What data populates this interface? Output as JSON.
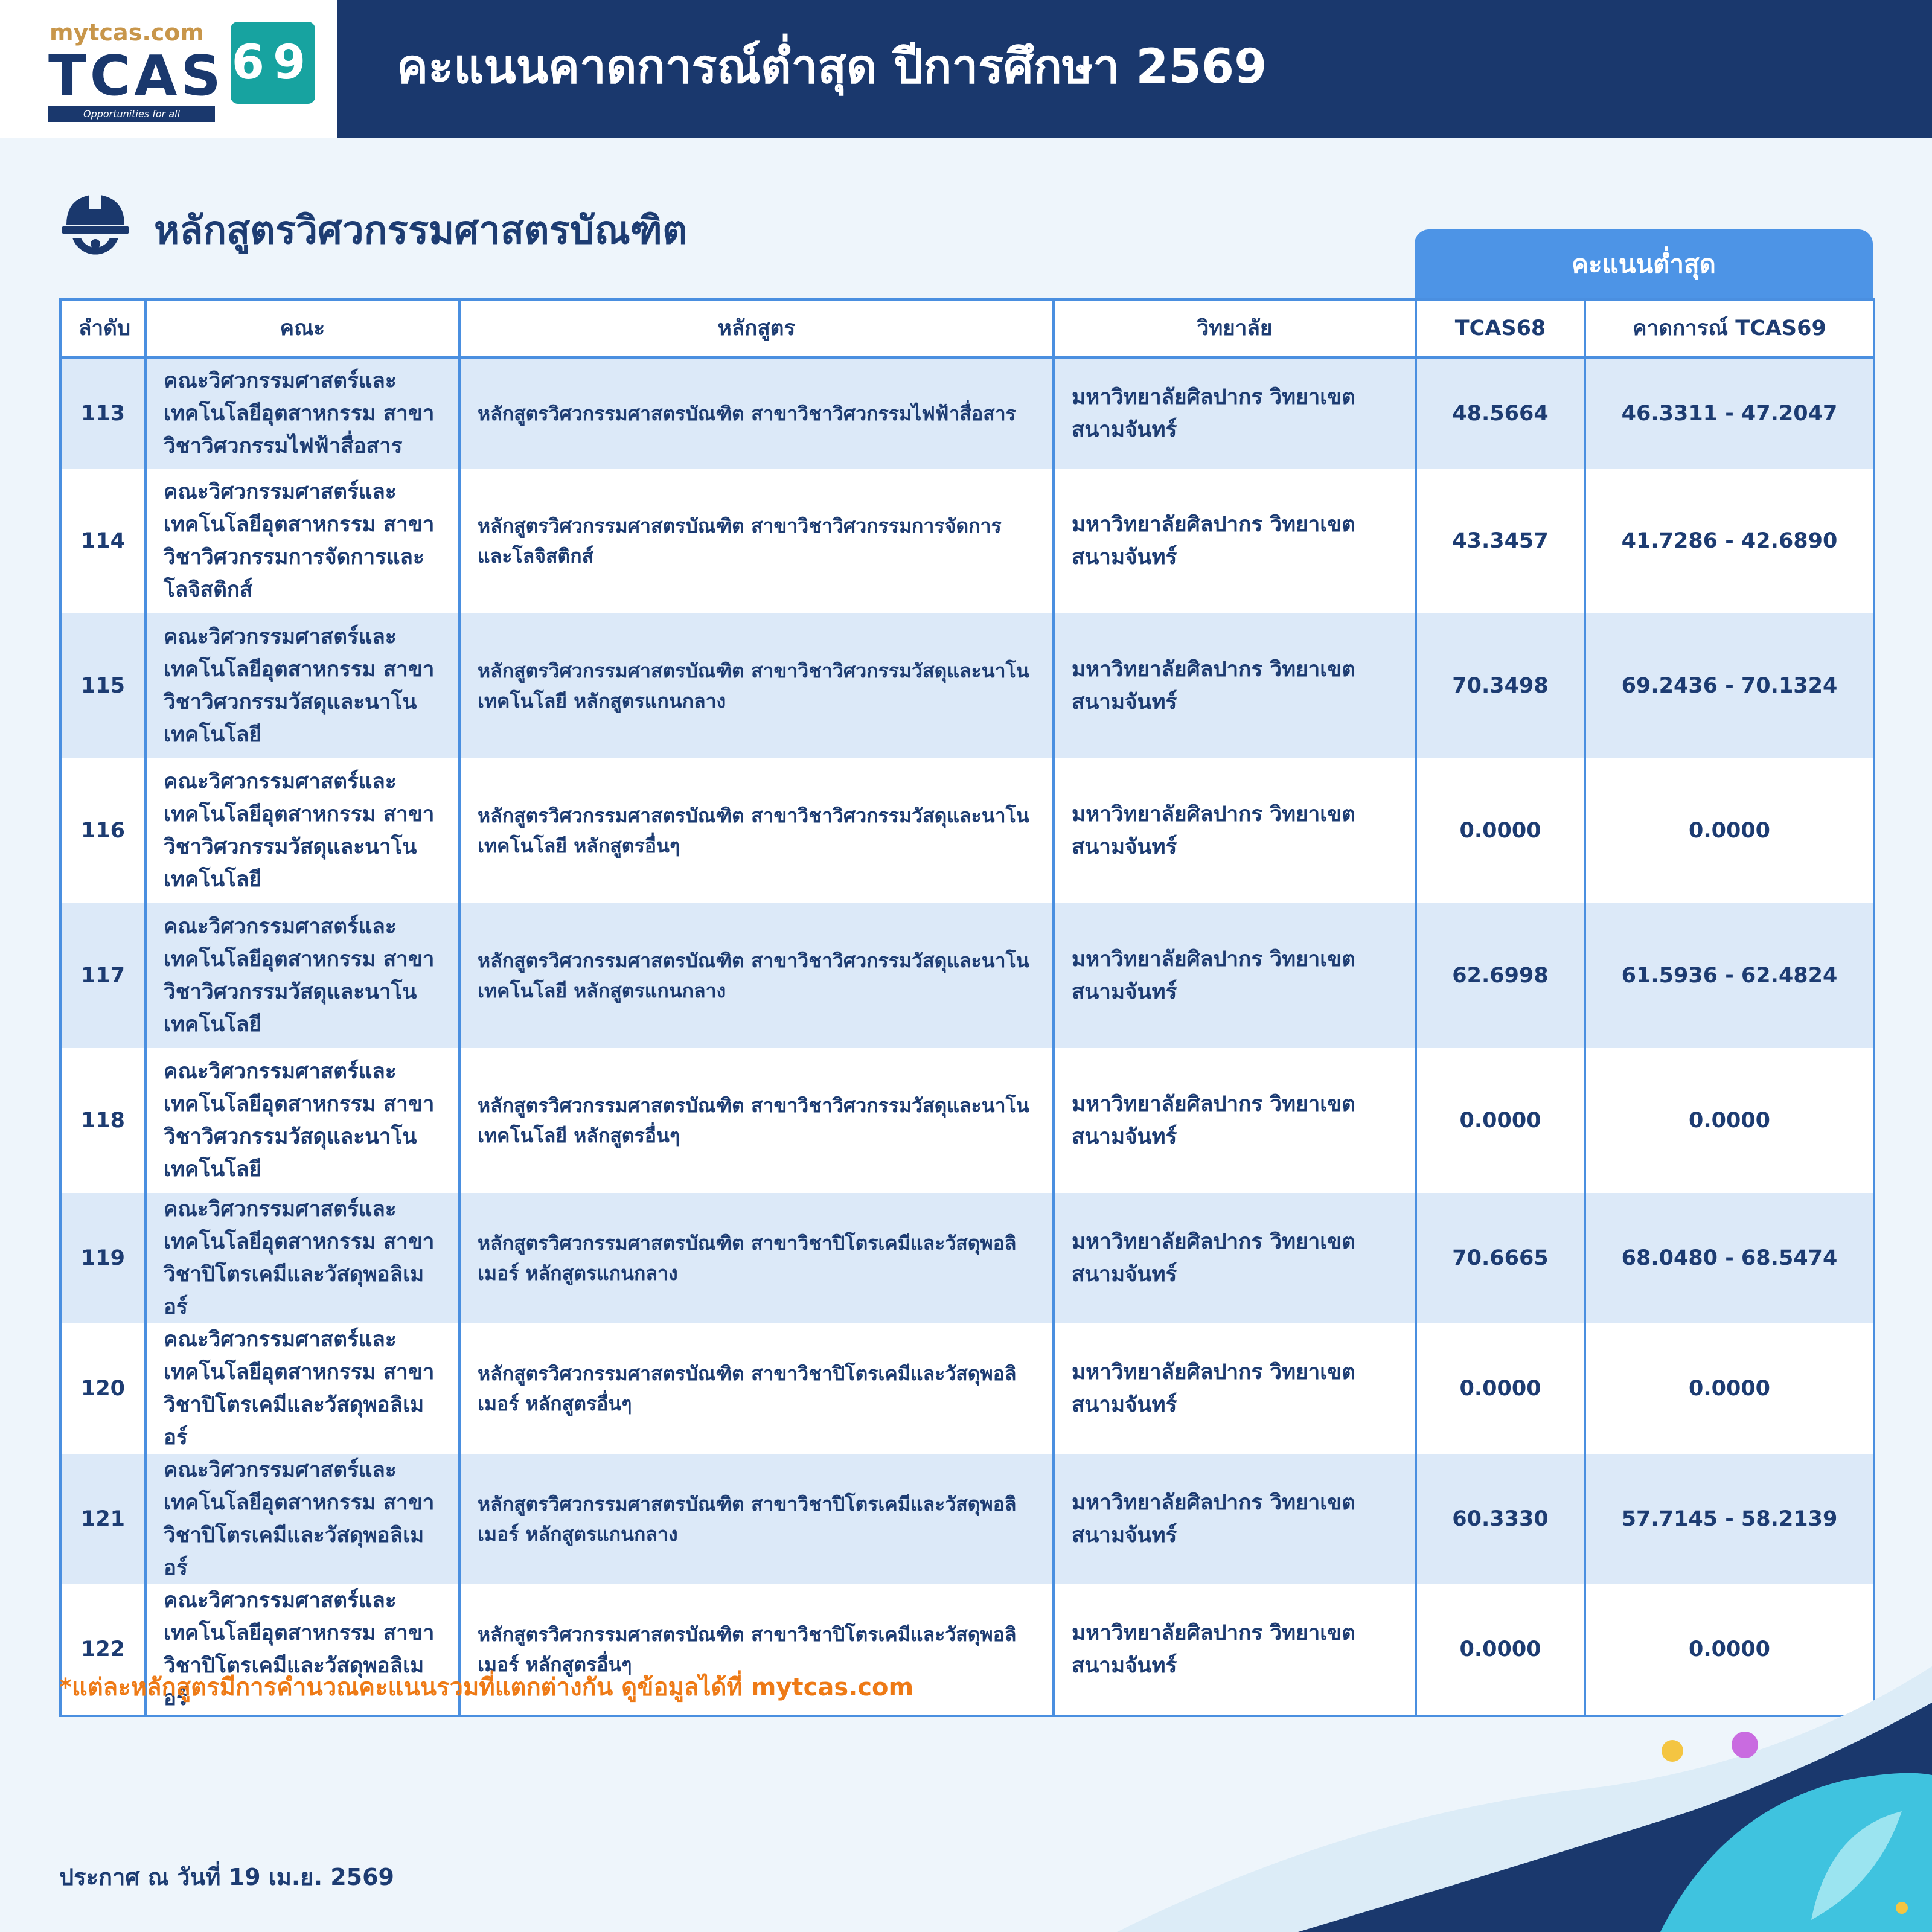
{
  "logo": {
    "site": "mytcas.com",
    "brand": "TCAS",
    "year": "69",
    "slogan": "Opportunities for all"
  },
  "header": {
    "title": "คะแนนคาดการณ์ต่ำสุด ปีการศึกษา 2569"
  },
  "section": {
    "title": "หลักสูตรวิศวกรรมศาสตรบัณฑิต"
  },
  "table": {
    "group_header": "คะแนนต่ำสุด",
    "columns": [
      "ลำดับ",
      "คณะ",
      "หลักสูตร",
      "วิทยาลัย",
      "TCAS68",
      "คาดการณ์ TCAS69"
    ],
    "rows": [
      [
        "113",
        "คณะวิศวกรรมศาสตร์และเทคโนโลยีอุตสาหกรรม สาขาวิชาวิศวกรรมไฟฟ้าสื่อสาร",
        "หลักสูตรวิศวกรรมศาสตรบัณฑิต สาขาวิชาวิศวกรรมไฟฟ้าสื่อสาร",
        "มหาวิทยาลัยศิลปากร วิทยาเขตสนามจันทร์",
        "48.5664",
        "46.3311 - 47.2047"
      ],
      [
        "114",
        "คณะวิศวกรรมศาสตร์และเทคโนโลยีอุตสาหกรรม สาขาวิชาวิศวกรรมการจัดการและโลจิสติกส์",
        "หลักสูตรวิศวกรรมศาสตรบัณฑิต สาขาวิชาวิศวกรรมการจัดการและโลจิสติกส์",
        "มหาวิทยาลัยศิลปากร วิทยาเขตสนามจันทร์",
        "43.3457",
        "41.7286 - 42.6890"
      ],
      [
        "115",
        "คณะวิศวกรรมศาสตร์และเทคโนโลยีอุตสาหกรรม สาขาวิชาวิศวกรรมวัสดุและนาโนเทคโนโลยี",
        "หลักสูตรวิศวกรรมศาสตรบัณฑิต สาขาวิชาวิศวกรรมวัสดุและนาโนเทคโนโลยี หลักสูตรแกนกลาง",
        "มหาวิทยาลัยศิลปากร วิทยาเขตสนามจันทร์",
        "70.3498",
        "69.2436 - 70.1324"
      ],
      [
        "116",
        "คณะวิศวกรรมศาสตร์และเทคโนโลยีอุตสาหกรรม สาขาวิชาวิศวกรรมวัสดุและนาโนเทคโนโลยี",
        "หลักสูตรวิศวกรรมศาสตรบัณฑิต สาขาวิชาวิศวกรรมวัสดุและนาโนเทคโนโลยี หลักสูตรอื่นๆ",
        "มหาวิทยาลัยศิลปากร วิทยาเขตสนามจันทร์",
        "0.0000",
        "0.0000"
      ],
      [
        "117",
        "คณะวิศวกรรมศาสตร์และเทคโนโลยีอุตสาหกรรม สาขาวิชาวิศวกรรมวัสดุและนาโนเทคโนโลยี",
        "หลักสูตรวิศวกรรมศาสตรบัณฑิต สาขาวิชาวิศวกรรมวัสดุและนาโนเทคโนโลยี หลักสูตรแกนกลาง",
        "มหาวิทยาลัยศิลปากร วิทยาเขตสนามจันทร์",
        "62.6998",
        "61.5936 - 62.4824"
      ],
      [
        "118",
        "คณะวิศวกรรมศาสตร์และเทคโนโลยีอุตสาหกรรม สาขาวิชาวิศวกรรมวัสดุและนาโนเทคโนโลยี",
        "หลักสูตรวิศวกรรมศาสตรบัณฑิต สาขาวิชาวิศวกรรมวัสดุและนาโนเทคโนโลยี หลักสูตรอื่นๆ",
        "มหาวิทยาลัยศิลปากร วิทยาเขตสนามจันทร์",
        "0.0000",
        "0.0000"
      ],
      [
        "119",
        "คณะวิศวกรรมศาสตร์และเทคโนโลยีอุตสาหกรรม สาขาวิชาปิโตรเคมีและวัสดุพอลิเมอร์",
        "หลักสูตรวิศวกรรมศาสตรบัณฑิต สาขาวิชาปิโตรเคมีและวัสดุพอลิเมอร์ หลักสูตรแกนกลาง",
        "มหาวิทยาลัยศิลปากร วิทยาเขตสนามจันทร์",
        "70.6665",
        "68.0480 - 68.5474"
      ],
      [
        "120",
        "คณะวิศวกรรมศาสตร์และเทคโนโลยีอุตสาหกรรม สาขาวิชาปิโตรเคมีและวัสดุพอลิเมอร์",
        "หลักสูตรวิศวกรรมศาสตรบัณฑิต สาขาวิชาปิโตรเคมีและวัสดุพอลิเมอร์ หลักสูตรอื่นๆ",
        "มหาวิทยาลัยศิลปากร วิทยาเขตสนามจันทร์",
        "0.0000",
        "0.0000"
      ],
      [
        "121",
        "คณะวิศวกรรมศาสตร์และเทคโนโลยีอุตสาหกรรม สาขาวิชาปิโตรเคมีและวัสดุพอลิเมอร์",
        "หลักสูตรวิศวกรรมศาสตรบัณฑิต สาขาวิชาปิโตรเคมีและวัสดุพอลิเมอร์ หลักสูตรแกนกลาง",
        "มหาวิทยาลัยศิลปากร วิทยาเขตสนามจันทร์",
        "60.3330",
        "57.7145 - 58.2139"
      ],
      [
        "122",
        "คณะวิศวกรรมศาสตร์และเทคโนโลยีอุตสาหกรรม สาขาวิชาปิโตรเคมีและวัสดุพอลิเมอร์",
        "หลักสูตรวิศวกรรมศาสตรบัณฑิต สาขาวิชาปิโตรเคมีและวัสดุพอลิเมอร์ หลักสูตรอื่นๆ",
        "มหาวิทยาลัยศิลปากร วิทยาเขตสนามจันทร์",
        "0.0000",
        "0.0000"
      ]
    ]
  },
  "footnote": "*แต่ละหลักสูตรมีการคำนวณคะแนนรวมที่แตกต่างกัน ดูข้อมูลได้ที่ mytcas.com",
  "announcement": "ประกาศ ณ วันที่ 19 เม.ย. 2569"
}
